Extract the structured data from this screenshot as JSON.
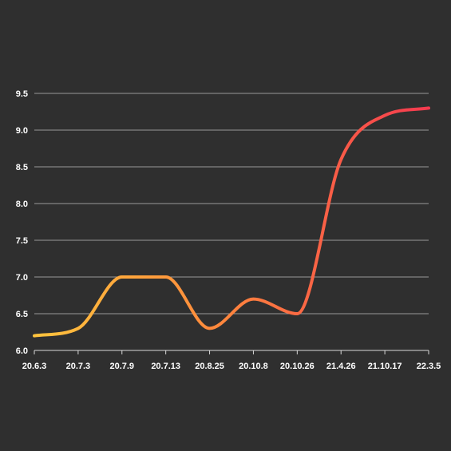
{
  "colors": {
    "background": "#2f2f2f",
    "gradient_start": "#ffc43d",
    "gradient_mid": "#ff8a3c",
    "gradient_end": "#f53a4f"
  },
  "chart_data": {
    "type": "line",
    "title": "",
    "xlabel": "",
    "ylabel": "",
    "categories": [
      "20.6.3",
      "20.7.3",
      "20.7.9",
      "20.7.13",
      "20.8.25",
      "20.10.8",
      "20.10.26",
      "21.4.26",
      "21.10.17",
      "22.3.5"
    ],
    "series": [
      {
        "values": [
          6.2,
          6.3,
          7.0,
          7.0,
          6.3,
          6.7,
          6.5,
          8.6,
          9.2,
          9.3
        ]
      }
    ],
    "ylim": [
      6.0,
      9.5
    ],
    "yticks": [
      "6.0",
      "6.5",
      "7.0",
      "7.5",
      "8.0",
      "8.5",
      "9.0",
      "9.5"
    ],
    "grid": true,
    "legend": "none",
    "smooth": true
  }
}
